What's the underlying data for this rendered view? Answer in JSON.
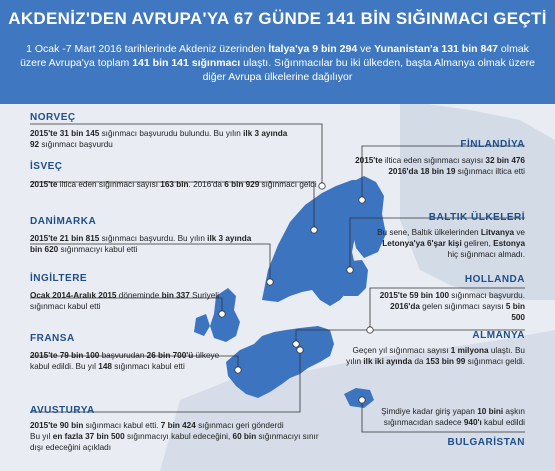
{
  "colors": {
    "header": "#3f78c0",
    "land": "#3c74c0",
    "sea": "#e9edf3",
    "label": "#1f4f8a"
  },
  "header": {
    "title": "AKDENİZ'DEN AVRUPA'YA 67 GÜNDE 141 BİN SIĞINMACI GEÇTİ",
    "intro": {
      "p1": "1 Ocak -7 Mart 2016 tarihlerinde Akdeniz üzerinden ",
      "b1": "İtalya'ya 9 bin 294",
      "p2": " ve ",
      "b2": "Yunanistan'a 131 bin 847",
      "p3": " olmak üzere Avrupa'ya toplam ",
      "b3": "141 bin 141 sığınmacı",
      "p4": " ulaştı. Sığınmacılar bu iki ülkeden, başta Almanya olmak üzere diğer Avrupa ülkelerine dağılıyor"
    }
  },
  "countries": {
    "norvec": {
      "name": "NORVEÇ",
      "b1": "2015'te 31 bin 145",
      "t1": " sığınmacı başvurudu bulundu. Bu yılın ",
      "b2": "ilk 3 ayında 92",
      "t2": " sığınmacı başvurdu"
    },
    "isvec": {
      "name": "İSVEÇ",
      "b1": "2015'te",
      "t1": " iltica eden sığınmacı sayısı ",
      "b2": "163 bin",
      "t2": ". 2016'da ",
      "b3": "6 bin 929",
      "t3": " sığınmacı geldi"
    },
    "danimarka": {
      "name": "DANİMARKA",
      "b1": "2015'te 21 bin 815",
      "t1": " sığınmacı başvurdu. Bu yılın ",
      "b2": "ilk 3 ayında bin 620",
      "t2": " sığınmacıyı kabul etti"
    },
    "ingiltere": {
      "name": "İNGİLTERE",
      "b1": "Ocak 2014-Aralık 2015",
      "t1": " döneminde ",
      "b2": "bin 337",
      "t2": " Suriyeli sığınmacı kabul etti"
    },
    "fransa": {
      "name": "FRANSA",
      "b1": "2015'te 79 bin 100",
      "t1": " başvurudan ",
      "b2": "26 bin 700'ü",
      "t2": " ülkeye kabul edildi. Bu yıl ",
      "b3": "148",
      "t3": " sığınmacı kabul etti"
    },
    "avusturya": {
      "name": "AVUSTURYA",
      "b1": "2015'te 90 bin",
      "t1": " sığınmacı kabul etti. ",
      "b2": "7 bin 424",
      "t2": " sığınmacı geri gönderdi",
      "t3": "Bu yıl ",
      "b3": "en fazla 37 bin 500",
      "t4": " sığınmacıyı kabul edeceğini, ",
      "b4": "60 bin",
      "t5": " sığınmacıyı sınır dışı edeceğini açıkladı"
    },
    "finlandiya": {
      "name": "FİNLANDİYA",
      "b1": "2015'te",
      "t1": " iltica eden sığınmacı sayısı ",
      "b2": "32 bin 476",
      "b3": "2016'da 18 bin 19",
      "t2": " sığınmacı iltica etti"
    },
    "baltik": {
      "name": "BALTIK ÜLKELERİ",
      "t1": "Bu sene, Baltık ülkelerinden ",
      "b1": "Litvanya",
      "t2": " ve ",
      "b2": "Letonya'ya 6'şar kişi",
      "t3": " geliren, ",
      "b3": "Estonya",
      "t4": " hiç sığınmacı almadı."
    },
    "hollanda": {
      "name": "HOLLANDA",
      "b1": "2015'te 59 bin 100",
      "t1": " sığınmacı başvurdu.",
      "b2": "2016'da",
      "t2": " gelen sığınmacı sayısı ",
      "b3": "5 bin 500"
    },
    "almanya": {
      "name": "ALMANYA",
      "t1": "Geçen yıl sığınmacı sayısı ",
      "b1": "1 milyona",
      "t2": " ulaştı. Bu yılın ",
      "b2": "ilk iki ayında",
      "t3": " da ",
      "b3": "153 bin 99",
      "t4": " sığınmacı geldi."
    },
    "bulgaristan": {
      "name": "BULGARİSTAN",
      "t1": "Şimdiye kadar giriş yapan ",
      "b1": "10 bini",
      "t2": " aşkın sığınmacıdan sadece ",
      "b2": "940'ı",
      "t3": " kabul edildi"
    }
  }
}
